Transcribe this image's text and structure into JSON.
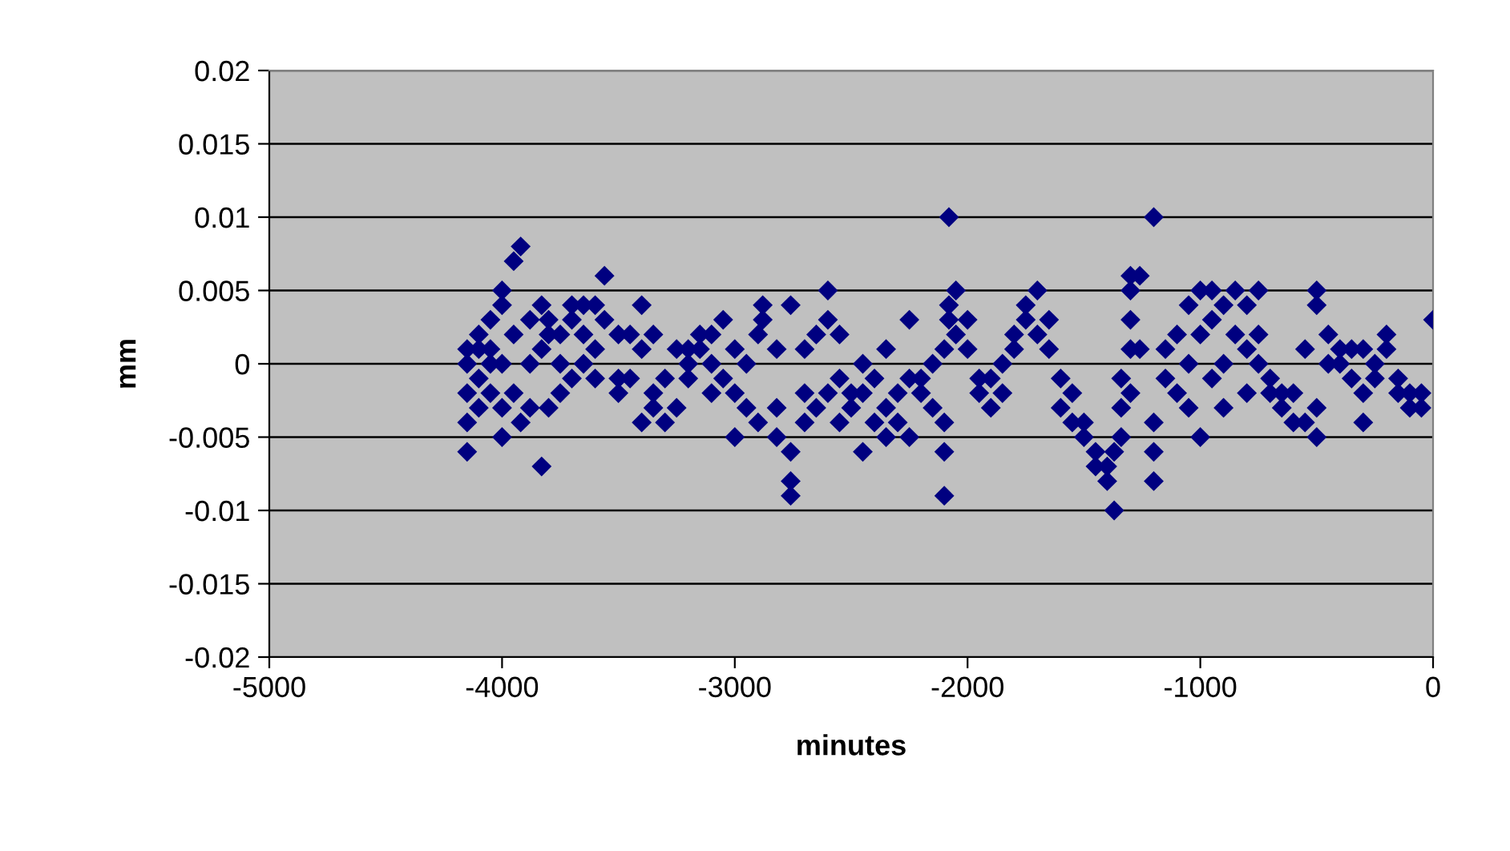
{
  "chart_data": {
    "type": "scatter",
    "xlabel": "minutes",
    "ylabel": "mm",
    "xlim": [
      -5000,
      0
    ],
    "xticks": [
      -5000,
      -4000,
      -3000,
      -2000,
      -1000,
      0
    ],
    "ylim": [
      -0.02,
      0.02
    ],
    "yticks": [
      -0.02,
      -0.015,
      -0.01,
      -0.005,
      0,
      0.005,
      0.01,
      0.015,
      0.02
    ],
    "grid": "y",
    "marker": "diamond",
    "series": [
      {
        "color": "#000080",
        "x": [
          -4150,
          -4150,
          -4150,
          -4150,
          -4150,
          -4100,
          -4100,
          -4100,
          -4100,
          -4050,
          -4050,
          -4050,
          -4050,
          -4000,
          -4000,
          -4000,
          -4000,
          -4000,
          -3950,
          -3950,
          -3950,
          -3920,
          -3920,
          -3880,
          -3880,
          -3880,
          -3830,
          -3830,
          -3830,
          -3800,
          -3800,
          -3800,
          -3750,
          -3750,
          -3750,
          -3700,
          -3700,
          -3700,
          -3650,
          -3650,
          -3650,
          -3600,
          -3600,
          -3600,
          -3560,
          -3560,
          -3500,
          -3500,
          -3500,
          -3450,
          -3450,
          -3400,
          -3400,
          -3400,
          -3350,
          -3350,
          -3350,
          -3300,
          -3300,
          -3250,
          -3250,
          -3200,
          -3200,
          -3200,
          -3150,
          -3150,
          -3100,
          -3100,
          -3100,
          -3050,
          -3050,
          -3000,
          -3000,
          -3000,
          -2950,
          -2950,
          -2900,
          -2900,
          -2880,
          -2880,
          -2820,
          -2820,
          -2820,
          -2760,
          -2760,
          -2760,
          -2760,
          -2700,
          -2700,
          -2700,
          -2650,
          -2650,
          -2600,
          -2600,
          -2600,
          -2550,
          -2550,
          -2550,
          -2500,
          -2500,
          -2450,
          -2450,
          -2450,
          -2400,
          -2400,
          -2350,
          -2350,
          -2350,
          -2300,
          -2300,
          -2250,
          -2250,
          -2250,
          -2200,
          -2200,
          -2150,
          -2150,
          -2100,
          -2100,
          -2100,
          -2100,
          -2080,
          -2080,
          -2080,
          -2050,
          -2050,
          -2000,
          -2000,
          -1950,
          -1950,
          -1900,
          -1900,
          -1850,
          -1850,
          -1800,
          -1800,
          -1750,
          -1750,
          -1700,
          -1700,
          -1650,
          -1650,
          -1600,
          -1600,
          -1550,
          -1550,
          -1500,
          -1500,
          -1450,
          -1450,
          -1400,
          -1400,
          -1370,
          -1370,
          -1340,
          -1340,
          -1340,
          -1300,
          -1300,
          -1300,
          -1300,
          -1300,
          -1260,
          -1260,
          -1200,
          -1200,
          -1200,
          -1200,
          -1150,
          -1150,
          -1100,
          -1100,
          -1050,
          -1050,
          -1050,
          -1000,
          -1000,
          -1000,
          -950,
          -950,
          -950,
          -900,
          -900,
          -900,
          -850,
          -850,
          -800,
          -800,
          -800,
          -750,
          -750,
          -750,
          -700,
          -700,
          -650,
          -650,
          -600,
          -600,
          -550,
          -550,
          -500,
          -500,
          -500,
          -500,
          -450,
          -450,
          -400,
          -400,
          -350,
          -350,
          -300,
          -300,
          -300,
          -250,
          -250,
          -200,
          -200,
          -150,
          -150,
          -100,
          -100,
          -50,
          -50,
          0
        ],
        "values": [
          0,
          -0.002,
          -0.004,
          -0.006,
          0.001,
          0.001,
          -0.003,
          0.002,
          -0.001,
          0.003,
          -0.002,
          0,
          0.001,
          0.005,
          0.004,
          -0.005,
          -0.003,
          0,
          0.007,
          0.002,
          -0.002,
          0.008,
          -0.004,
          0.003,
          0,
          -0.003,
          -0.007,
          0.004,
          0.001,
          0.002,
          -0.003,
          0.003,
          -0.002,
          0,
          0.002,
          0.003,
          0.004,
          -0.001,
          0.004,
          0.002,
          0,
          0.004,
          0.001,
          -0.001,
          0.006,
          0.003,
          -0.001,
          0.002,
          -0.002,
          0.002,
          -0.001,
          0.004,
          0.001,
          -0.004,
          0.002,
          -0.002,
          -0.003,
          -0.004,
          -0.001,
          0.001,
          -0.003,
          0,
          -0.001,
          0.001,
          0.002,
          0.001,
          0,
          -0.002,
          0.002,
          0.003,
          -0.001,
          -0.002,
          0.001,
          -0.005,
          -0.003,
          0,
          0.002,
          -0.004,
          0.004,
          0.003,
          -0.003,
          -0.005,
          0.001,
          -0.008,
          -0.009,
          -0.006,
          0.004,
          -0.002,
          -0.004,
          0.001,
          0.002,
          -0.003,
          0.005,
          0.003,
          -0.002,
          0.002,
          -0.001,
          -0.004,
          -0.003,
          -0.002,
          -0.006,
          -0.002,
          0,
          -0.004,
          -0.001,
          -0.005,
          -0.003,
          0.001,
          -0.002,
          -0.004,
          0.003,
          -0.001,
          -0.005,
          -0.002,
          -0.001,
          -0.003,
          0,
          -0.006,
          -0.009,
          0.001,
          -0.004,
          0.01,
          0.003,
          0.004,
          0.005,
          0.002,
          0.003,
          0.001,
          -0.001,
          -0.002,
          -0.003,
          -0.001,
          -0.002,
          0,
          0.002,
          0.001,
          0.004,
          0.003,
          0.005,
          0.002,
          0.003,
          0.001,
          -0.001,
          -0.003,
          -0.002,
          -0.004,
          -0.004,
          -0.005,
          -0.006,
          -0.007,
          -0.008,
          -0.007,
          -0.01,
          -0.006,
          -0.005,
          -0.003,
          -0.001,
          0.006,
          0.005,
          0.003,
          0.001,
          -0.002,
          0.006,
          0.001,
          0.01,
          -0.004,
          -0.006,
          -0.008,
          -0.001,
          0.001,
          0.002,
          -0.002,
          0.004,
          0,
          -0.003,
          0.005,
          -0.005,
          0.002,
          0.005,
          0.003,
          -0.001,
          0.004,
          0,
          -0.003,
          0.005,
          0.002,
          0.004,
          0.001,
          -0.002,
          0.005,
          0.002,
          0,
          -0.002,
          -0.001,
          -0.003,
          -0.002,
          -0.004,
          -0.002,
          -0.004,
          0.001,
          0.005,
          0.004,
          -0.005,
          -0.003,
          0.002,
          0,
          0.001,
          0,
          -0.001,
          0.001,
          -0.004,
          -0.002,
          0.001,
          0,
          -0.001,
          0.002,
          0.001,
          -0.001,
          -0.002,
          -0.003,
          -0.002,
          -0.003,
          -0.002,
          0.003
        ]
      }
    ]
  }
}
